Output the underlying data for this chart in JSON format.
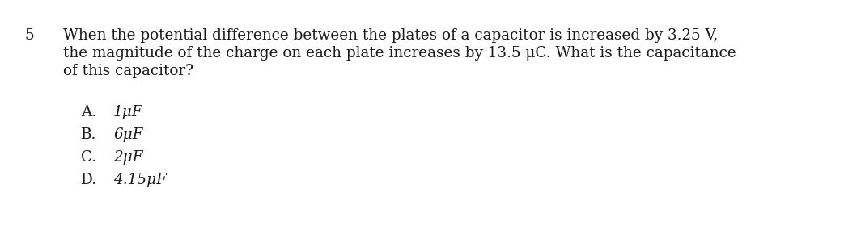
{
  "question_number": "5",
  "question_line1": "When the potential difference between the plates of a capacitor is increased by 3.25 V,",
  "question_line2": "the magnitude of the charge on each plate increases by 13.5 μC. What is the capacitance",
  "question_line3": "of this capacitor?",
  "options": [
    {
      "label": "A.",
      "value": "1μF"
    },
    {
      "label": "B.",
      "value": "6μF"
    },
    {
      "label": "C.",
      "value": "2μF"
    },
    {
      "label": "D.",
      "value": "4.15μF"
    }
  ],
  "background_color": "#ffffff",
  "text_color": "#1a1a1a",
  "font_size_question": 13.2,
  "font_size_number": 13.2,
  "font_size_options": 13.2,
  "fig_width": 10.43,
  "fig_height": 2.9,
  "dpi": 100
}
